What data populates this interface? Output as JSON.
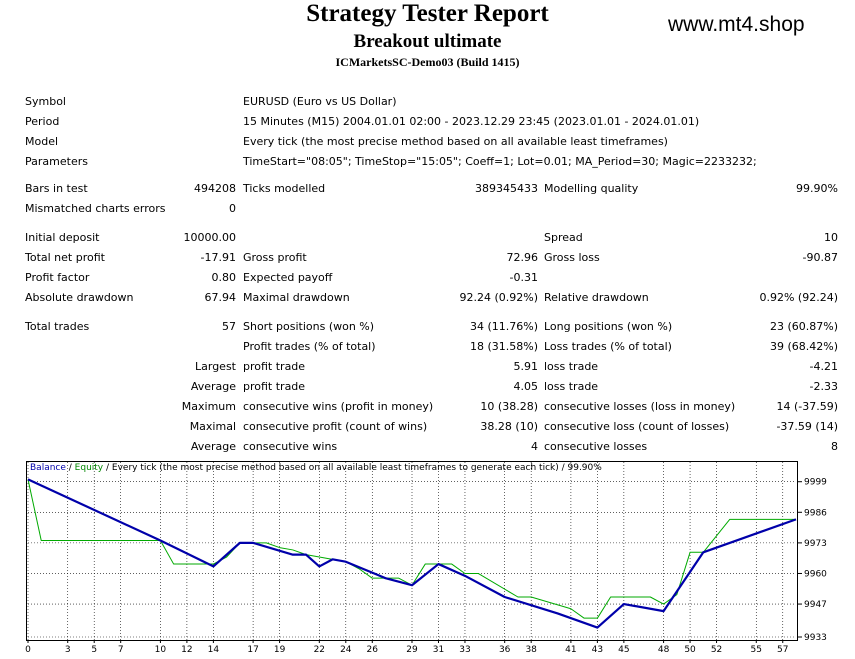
{
  "report": {
    "title": "Strategy Tester Report",
    "subtitle": "Breakout ultimate",
    "server": "ICMarketsSC-Demo03 (Build 1415)",
    "watermark": "www.mt4.shop"
  },
  "settings": {
    "symbol_label": "Symbol",
    "symbol_value": "EURUSD (Euro vs US Dollar)",
    "period_label": "Period",
    "period_value": "15 Minutes (M15) 2004.01.01 02:00 - 2023.12.29 23:45 (2023.01.01 - 2024.01.01)",
    "model_label": "Model",
    "model_value": "Every tick (the most precise method based on all available least timeframes)",
    "params_label": "Parameters",
    "params_value": "TimeStart=\"08:05\"; TimeStop=\"15:05\"; Coeff=1; Lot=0.01; MA_Period=30; Magic=2233232;"
  },
  "stats": {
    "bars_label": "Bars in test",
    "bars_value": "494208",
    "ticks_label": "Ticks modelled",
    "ticks_value": "389345433",
    "quality_label": "Modelling quality",
    "quality_value": "99.90%",
    "mismatch_label": "Mismatched charts errors",
    "mismatch_value": "0",
    "deposit_label": "Initial deposit",
    "deposit_value": "10000.00",
    "spread_label": "Spread",
    "spread_value": "10",
    "netprofit_label": "Total net profit",
    "netprofit_value": "-17.91",
    "grossprofit_label": "Gross profit",
    "grossprofit_value": "72.96",
    "grossloss_label": "Gross loss",
    "grossloss_value": "-90.87",
    "pf_label": "Profit factor",
    "pf_value": "0.80",
    "payoff_label": "Expected payoff",
    "payoff_value": "-0.31",
    "absdd_label": "Absolute drawdown",
    "absdd_value": "67.94",
    "maxdd_label": "Maximal drawdown",
    "maxdd_value": "92.24 (0.92%)",
    "reldd_label": "Relative drawdown",
    "reldd_value": "0.92% (92.24)",
    "trades_label": "Total trades",
    "trades_value": "57",
    "short_label": "Short positions (won %)",
    "short_value": "34 (11.76%)",
    "long_label": "Long positions (won %)",
    "long_value": "23 (60.87%)",
    "pt_label": "Profit trades (% of total)",
    "pt_value": "18 (31.58%)",
    "lt_label": "Loss trades (% of total)",
    "lt_value": "39 (68.42%)",
    "largest_label": "Largest",
    "largest_pt_label": "profit trade",
    "largest_pt_value": "5.91",
    "largest_lt_label": "loss trade",
    "largest_lt_value": "-4.21",
    "average_label": "Average",
    "average_pt_label": "profit trade",
    "average_pt_value": "4.05",
    "average_lt_label": "loss trade",
    "average_lt_value": "-2.33",
    "maximum_label": "Maximum",
    "max_cw_label": "consecutive wins (profit in money)",
    "max_cw_value": "10 (38.28)",
    "max_cl_label": "consecutive losses (loss in money)",
    "max_cl_value": "14 (-37.59)",
    "maximal_label": "Maximal",
    "mxl_cp_label": "consecutive profit (count of wins)",
    "mxl_cp_value": "38.28 (10)",
    "mxl_cl_label": "consecutive loss (count of losses)",
    "mxl_cl_value": "-37.59 (14)",
    "avg2_label": "Average",
    "avg_cw_label": "consecutive wins",
    "avg_cw_value": "4",
    "avg_cl_label": "consecutive losses",
    "avg_cl_value": "8"
  },
  "chart_label": {
    "balance": "Balance",
    "sep": " / ",
    "equity": "Equity",
    "rest": " / Every tick (the most precise method based on all available least timeframes to generate each tick) / 99.90%"
  },
  "chart_data": {
    "type": "line",
    "x_ticks": [
      0,
      3,
      5,
      7,
      10,
      12,
      14,
      17,
      19,
      22,
      24,
      26,
      29,
      31,
      33,
      36,
      38,
      41,
      43,
      45,
      48,
      50,
      52,
      55,
      57
    ],
    "y_ticks": [
      9933,
      9947,
      9960,
      9973,
      9986,
      9999
    ],
    "xlim": [
      0,
      58
    ],
    "ylim": [
      9933,
      10001
    ],
    "colors": {
      "balance": "#0000aa",
      "equity": "#00aa00"
    },
    "series": [
      {
        "name": "Balance",
        "x": [
          0,
          10,
          14,
          16,
          17,
          20,
          21,
          22,
          23,
          24,
          27,
          29,
          31,
          33,
          36,
          40,
          43,
          45,
          48,
          51,
          54,
          58
        ],
        "y": [
          10000,
          9974,
          9963,
          9973,
          9973,
          9968,
          9968,
          9963,
          9966,
          9965,
          9958,
          9955,
          9964,
          9959,
          9950,
          9943,
          9937,
          9947,
          9944,
          9969,
          9975,
          9983
        ]
      },
      {
        "name": "Equity",
        "x": [
          0,
          1,
          10,
          11,
          14,
          15,
          16,
          18,
          19,
          20,
          21,
          22,
          23,
          24,
          25,
          26,
          28,
          29,
          30,
          32,
          33,
          34,
          37,
          38,
          41,
          42,
          43,
          44,
          47,
          48,
          49,
          50,
          51,
          53,
          57,
          58
        ],
        "y": [
          10000,
          9974,
          9974,
          9964,
          9964,
          9967,
          9973,
          9973,
          9971,
          9970,
          9968,
          9967,
          9966,
          9965,
          9962,
          9958,
          9958,
          9955,
          9964,
          9964,
          9960,
          9960,
          9950,
          9950,
          9945,
          9941,
          9941,
          9950,
          9950,
          9947,
          9951,
          9969,
          9969,
          9983,
          9983,
          9983
        ]
      }
    ]
  }
}
